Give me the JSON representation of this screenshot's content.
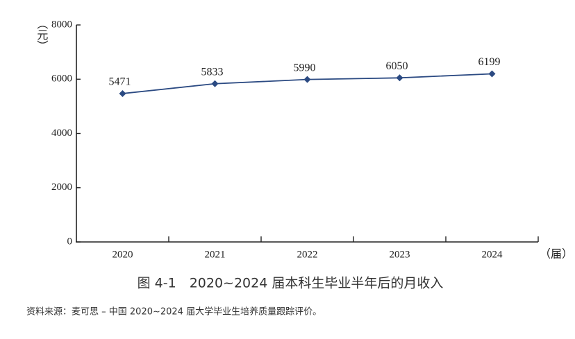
{
  "chart_data": {
    "type": "line",
    "title": "图 4-1　2020~2024 届本科生毕业半年后的月收入",
    "source": "资料来源：麦可思 – 中国 2020~2024 届大学毕业生培养质量跟踪评价。",
    "y_label": "（元）",
    "x_label": "（届）",
    "categories": [
      "2020",
      "2021",
      "2022",
      "2023",
      "2024"
    ],
    "values": [
      5471,
      5833,
      5990,
      6050,
      6199
    ],
    "color": "#2b4a82",
    "ylim": [
      0,
      8000
    ],
    "yticks": [
      0,
      2000,
      4000,
      6000,
      8000
    ]
  }
}
